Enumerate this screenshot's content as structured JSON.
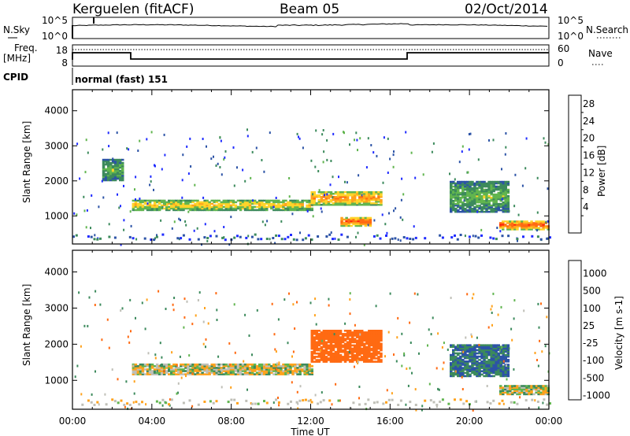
{
  "header": {
    "station": "Kerguelen (fitACF)",
    "beam": "Beam 05",
    "date": "02/Oct/2014"
  },
  "sky_panel": {
    "left_label": "N.Sky",
    "right_label": "N.Search",
    "left_ticks": [
      "10^5",
      "10^0"
    ],
    "right_ticks": [
      "10^5",
      "10^0"
    ]
  },
  "freq_panel": {
    "left_label_1": "Freq.",
    "left_label_2": "[MHz]",
    "right_label": "Nave",
    "left_ticks": [
      "18",
      "8"
    ],
    "right_ticks": [
      "60",
      "0"
    ]
  },
  "cpid": {
    "label": "CPID",
    "mode": "normal (fast) 151"
  },
  "colors": {
    "power": [
      "#1f2bff",
      "#2c53a6",
      "#3c8a5c",
      "#61b54f",
      "#ffd42a",
      "#ffa21c",
      "#ff6a12",
      "#ff1f0f"
    ],
    "velocity": [
      "#1f2bff",
      "#2c53a6",
      "#3c8a5c",
      "#61b54f",
      "#bfbfb7",
      "#ffa21c",
      "#ff6a12",
      "#ff1f0f"
    ]
  },
  "chart_data": [
    {
      "type": "heatmap",
      "name": "power",
      "ylabel": "Slant Range [km]",
      "yticks": [
        "4000",
        "3000",
        "2000",
        "1000"
      ],
      "ylim": [
        200,
        4600
      ],
      "xlim": [
        0,
        24
      ],
      "colorbar": {
        "label": "Power [dB]",
        "ticks": [
          "28",
          "24",
          "20",
          "16",
          "12",
          "8",
          "4"
        ],
        "range": [
          0,
          32
        ]
      },
      "features": [
        {
          "t": [
            3.0,
            12.0
          ],
          "range_km": [
            1150,
            1450
          ],
          "level_db": 20
        },
        {
          "t": [
            12.0,
            15.5
          ],
          "range_km": [
            1300,
            1700
          ],
          "level_db": 24
        },
        {
          "t": [
            13.5,
            15.0
          ],
          "range_km": [
            700,
            950
          ],
          "level_db": 28
        },
        {
          "t": [
            21.5,
            24.0
          ],
          "range_km": [
            600,
            850
          ],
          "level_db": 28
        },
        {
          "t": [
            19.0,
            22.0
          ],
          "range_km": [
            1100,
            2000
          ],
          "level_db": 14
        },
        {
          "t": [
            1.5,
            2.5
          ],
          "range_km": [
            2000,
            2600
          ],
          "level_db": 14
        }
      ]
    },
    {
      "type": "heatmap",
      "name": "velocity",
      "ylabel": "Slant Range [km]",
      "yticks": [
        "4000",
        "3000",
        "2000",
        "1000"
      ],
      "ylim": [
        200,
        4600
      ],
      "xlim": [
        0,
        24
      ],
      "xticks": [
        "00:00",
        "04:00",
        "08:00",
        "12:00",
        "16:00",
        "20:00",
        "00:00"
      ],
      "xlabel": "Time UT",
      "colorbar": {
        "label": "Velocity [m s-1]",
        "ticks": [
          "1000",
          "500",
          "100",
          "25",
          "-25",
          "-100",
          "-500",
          "-1000"
        ]
      },
      "features": [
        {
          "t": [
            3.0,
            12.0
          ],
          "range_km": [
            1150,
            1450
          ],
          "velocity": 0
        },
        {
          "t": [
            12.0,
            15.5
          ],
          "range_km": [
            1500,
            2400
          ],
          "velocity": -300
        },
        {
          "t": [
            19.0,
            22.0
          ],
          "range_km": [
            1100,
            2000
          ],
          "velocity": 300
        },
        {
          "t": [
            21.5,
            24.0
          ],
          "range_km": [
            600,
            850
          ],
          "velocity": 0
        }
      ]
    }
  ]
}
